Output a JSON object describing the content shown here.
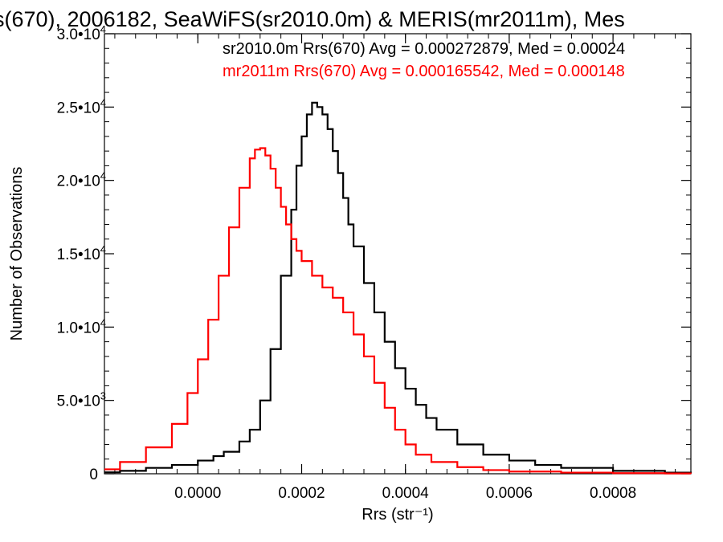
{
  "chart_data": {
    "type": "line",
    "title": "s(670), 2006182, SeaWiFS(sr2010.0m) & MERIS(mr2011m), Mes",
    "xlabel": "Rrs (str⁻¹)",
    "ylabel": "Number of Observations",
    "xlim": [
      -0.00018,
      0.00095
    ],
    "ylim": [
      0,
      30000
    ],
    "x_ticks": [
      {
        "value": 0.0,
        "label": "0.0000"
      },
      {
        "value": 0.0002,
        "label": "0.0002"
      },
      {
        "value": 0.0004,
        "label": "0.0004"
      },
      {
        "value": 0.0006,
        "label": "0.0006"
      },
      {
        "value": 0.0008,
        "label": "0.0008"
      }
    ],
    "y_ticks": [
      {
        "value": 0,
        "mant": "0",
        "exp": ""
      },
      {
        "value": 5000,
        "mant": "5.0•10",
        "exp": "3"
      },
      {
        "value": 10000,
        "mant": "1.0•10",
        "exp": "4"
      },
      {
        "value": 15000,
        "mant": "1.5•10",
        "exp": "4"
      },
      {
        "value": 20000,
        "mant": "2.0•10",
        "exp": "4"
      },
      {
        "value": 25000,
        "mant": "2.5•10",
        "exp": "4"
      },
      {
        "value": 30000,
        "mant": "3.0•10",
        "exp": "4"
      }
    ],
    "grid": false,
    "legend_position": "top-right",
    "annotations": [
      {
        "text": "sr2010.0m Rrs(670) Avg = 0.000272879, Med = 0.00024",
        "color": "#000000"
      },
      {
        "text": "mr2011m Rrs(670) Avg = 0.000165542, Med = 0.000148",
        "color": "#ff0000"
      }
    ],
    "series": [
      {
        "color": "#000000",
        "x": [
          -0.00018,
          -0.00015,
          -0.0001,
          -5e-05,
          0.0,
          3e-05,
          5e-05,
          8e-05,
          0.0001,
          0.00012,
          0.00014,
          0.00016,
          0.00018,
          0.00019,
          0.0002,
          0.00021,
          0.00022,
          0.00023,
          0.00024,
          0.00025,
          0.00026,
          0.00027,
          0.00028,
          0.00029,
          0.0003,
          0.00032,
          0.00034,
          0.00036,
          0.00038,
          0.0004,
          0.00042,
          0.00044,
          0.00046,
          0.0005,
          0.00055,
          0.0006,
          0.00065,
          0.0007,
          0.0008,
          0.0009,
          0.00095
        ],
        "values": [
          100,
          200,
          400,
          600,
          900,
          1200,
          1500,
          2200,
          3000,
          5000,
          8500,
          13500,
          18000,
          21000,
          23000,
          24500,
          25300,
          25000,
          24500,
          23500,
          22000,
          20500,
          18800,
          17000,
          15500,
          13000,
          11000,
          9000,
          7200,
          5800,
          4700,
          3800,
          3000,
          2000,
          1300,
          900,
          600,
          400,
          200,
          80,
          50
        ]
      },
      {
        "color": "#ff0000",
        "x": [
          -0.00018,
          -0.00015,
          -0.0001,
          -5e-05,
          -2e-05,
          0.0,
          2e-05,
          4e-05,
          6e-05,
          8e-05,
          0.0001,
          0.00011,
          0.00012,
          0.00013,
          0.00014,
          0.00015,
          0.00016,
          0.00017,
          0.00018,
          0.00019,
          0.0002,
          0.00022,
          0.00024,
          0.00026,
          0.00028,
          0.0003,
          0.00032,
          0.00034,
          0.00036,
          0.00038,
          0.0004,
          0.00042,
          0.00045,
          0.0005,
          0.00055,
          0.0006,
          0.0007,
          0.0008,
          0.0009,
          0.00095
        ],
        "values": [
          300,
          800,
          1800,
          3400,
          5500,
          7800,
          10500,
          13500,
          16800,
          19500,
          21500,
          22100,
          22200,
          21700,
          20800,
          19500,
          18200,
          17000,
          16000,
          15200,
          14500,
          13500,
          12700,
          12000,
          11000,
          9500,
          8000,
          6200,
          4500,
          3000,
          2000,
          1300,
          800,
          450,
          250,
          150,
          80,
          40,
          20,
          10
        ]
      }
    ]
  }
}
